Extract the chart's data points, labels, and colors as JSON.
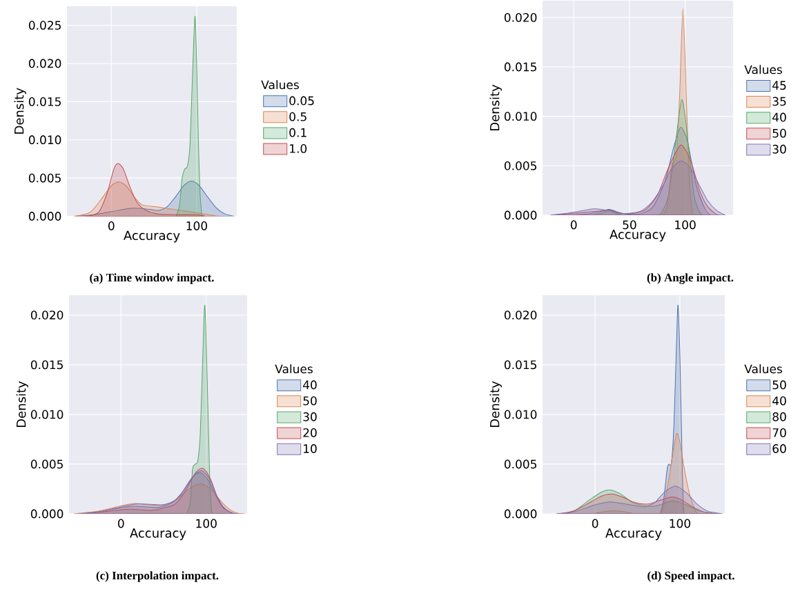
{
  "chart_data": [
    {
      "type": "area",
      "xlabel": "Accuracy",
      "ylabel": "Density",
      "legend_title": "Values",
      "legend": "right",
      "grid": true,
      "annotations": [
        "(a)  Time window impact."
      ],
      "xlim": [
        -52,
        147
      ],
      "ylim": [
        0,
        0.0275
      ],
      "xticks": [
        0,
        100
      ],
      "yticks": [
        {
          "value": 0,
          "label": "0.000"
        },
        {
          "value": 0.005,
          "label": "0.005"
        },
        {
          "value": 0.01,
          "label": "0.010"
        },
        {
          "value": 0.015,
          "label": "0.015"
        },
        {
          "value": 0.02,
          "label": "0.020"
        },
        {
          "value": 0.025,
          "label": "0.025"
        }
      ],
      "series": [
        {
          "name": "0.05",
          "color": "#4c72b0",
          "x": [
            -43,
            -20,
            0,
            25,
            45,
            55,
            65,
            75,
            85,
            94,
            103,
            113,
            123,
            133,
            144
          ],
          "values": [
            0,
            0.0002,
            0.0006,
            0.00105,
            0.0009,
            0.00075,
            0.0012,
            0.0025,
            0.004,
            0.0046,
            0.004,
            0.0025,
            0.0011,
            0.0003,
            0
          ]
        },
        {
          "name": "0.5",
          "color": "#dd8452",
          "x": [
            -43,
            -25,
            -10,
            0,
            9,
            18,
            27,
            36,
            55,
            82,
            100,
            122,
            130
          ],
          "values": [
            0,
            0.0005,
            0.0025,
            0.004,
            0.0045,
            0.0039,
            0.0025,
            0.0015,
            0.0012,
            0.00075,
            0.00045,
            5e-05,
            0
          ]
        },
        {
          "name": "0.1",
          "color": "#55a868",
          "x": [
            76,
            80,
            83,
            86,
            89,
            92,
            95,
            98,
            100,
            102,
            104,
            106,
            107
          ],
          "values": [
            0,
            0.0015,
            0.005,
            0.0062,
            0.0065,
            0.009,
            0.018,
            0.0262,
            0.02,
            0.01,
            0.003,
            0.0003,
            0
          ]
        },
        {
          "name": "1.0",
          "color": "#c44e52",
          "x": [
            -30,
            -15,
            -5,
            3,
            8,
            14,
            22,
            30,
            40,
            55,
            80,
            100,
            110
          ],
          "values": [
            0,
            0.0005,
            0.003,
            0.0062,
            0.0069,
            0.0062,
            0.0038,
            0.0018,
            0.0008,
            0.0003,
            0.0002,
            0.0002,
            0
          ]
        }
      ]
    },
    {
      "type": "area",
      "xlabel": "Accuracy",
      "ylabel": "Density",
      "legend_title": "Values",
      "legend": "right",
      "grid": true,
      "annotations": [
        "(b)  Angle impact."
      ],
      "xlim": [
        -28,
        143
      ],
      "ylim": [
        0,
        0.0217
      ],
      "xticks": [
        0,
        50,
        100
      ],
      "yticks": [
        {
          "value": 0,
          "label": "0.000"
        },
        {
          "value": 0.005,
          "label": "0.005"
        },
        {
          "value": 0.01,
          "label": "0.010"
        },
        {
          "value": 0.015,
          "label": "0.015"
        },
        {
          "value": 0.02,
          "label": "0.020"
        }
      ],
      "series": [
        {
          "name": "45",
          "color": "#4c72b0",
          "x": [
            -10,
            10,
            25,
            32,
            40,
            50,
            62,
            72,
            82,
            90,
            96,
            102,
            110,
            118,
            123
          ],
          "values": [
            0,
            0.0001,
            0.0004,
            0.0006,
            0.0003,
            0.0001,
            0.0002,
            0.001,
            0.0035,
            0.007,
            0.0089,
            0.0075,
            0.003,
            0.0006,
            0
          ]
        },
        {
          "name": "35",
          "color": "#dd8452",
          "x": [
            80,
            84,
            88,
            92,
            95,
            98,
            101,
            104,
            107
          ],
          "values": [
            0,
            0.001,
            0.005,
            0.006,
            0.012,
            0.0209,
            0.012,
            0.003,
            0
          ]
        },
        {
          "name": "40",
          "color": "#55a868",
          "x": [
            15,
            25,
            32,
            40,
            50,
            75,
            80,
            85,
            90,
            97,
            103,
            108,
            113,
            116
          ],
          "values": [
            0,
            0.0002,
            0.0005,
            0.0001,
            0,
            0,
            0.0005,
            0.002,
            0.006,
            0.0117,
            0.007,
            0.002,
            0.0003,
            0
          ]
        },
        {
          "name": "50",
          "color": "#c44e52",
          "x": [
            -20,
            0,
            20,
            32,
            42,
            55,
            65,
            75,
            85,
            96,
            105,
            113,
            120,
            128,
            132
          ],
          "values": [
            0,
            0.0002,
            0.0004,
            0.0005,
            0.0002,
            0.0002,
            0.0006,
            0.002,
            0.0048,
            0.0071,
            0.0055,
            0.0025,
            0.0009,
            0.0001,
            0
          ]
        },
        {
          "name": "30",
          "color": "#8172b3",
          "x": [
            -21,
            0,
            18,
            30,
            40,
            50,
            60,
            70,
            80,
            88,
            96,
            104,
            112,
            120,
            128,
            136
          ],
          "values": [
            0,
            0.0003,
            0.00065,
            0.0005,
            0.0002,
            0.0002,
            0.0004,
            0.0013,
            0.003,
            0.0047,
            0.0055,
            0.0049,
            0.0032,
            0.0015,
            0.0005,
            0
          ]
        }
      ]
    },
    {
      "type": "area",
      "xlabel": "Accuracy",
      "ylabel": "Density",
      "legend_title": "Values",
      "legend": "right",
      "grid": true,
      "annotations": [
        "(c)  Interpolation impact."
      ],
      "xlim": [
        -61,
        148
      ],
      "ylim": [
        0,
        0.022
      ],
      "xticks": [
        0,
        100
      ],
      "yticks": [
        {
          "value": 0,
          "label": "0.000"
        },
        {
          "value": 0.005,
          "label": "0.005"
        },
        {
          "value": 0.01,
          "label": "0.010"
        },
        {
          "value": 0.015,
          "label": "0.015"
        },
        {
          "value": 0.02,
          "label": "0.020"
        }
      ],
      "series": [
        {
          "name": "40",
          "color": "#4c72b0",
          "x": [
            -46,
            -20,
            0,
            16,
            43,
            60,
            70,
            80,
            88,
            94.6,
            103,
            112,
            120,
            130,
            135
          ],
          "values": [
            0,
            0.0003,
            0.0006,
            0.00076,
            0.00065,
            0.0011,
            0.0019,
            0.0032,
            0.004,
            0.0041,
            0.0033,
            0.0017,
            0.0006,
            0.0001,
            0
          ]
        },
        {
          "name": "50",
          "color": "#dd8452",
          "x": [
            -55,
            -25,
            0,
            16,
            35,
            50,
            65,
            78,
            88,
            94.6,
            104,
            115,
            125,
            135,
            145
          ],
          "values": [
            0,
            0.0003,
            0.0008,
            0.00104,
            0.0009,
            0.0009,
            0.0014,
            0.0024,
            0.0029,
            0.003,
            0.0026,
            0.0015,
            0.0006,
            0.0001,
            0
          ]
        },
        {
          "name": "30",
          "color": "#55a868",
          "x": [
            77,
            81,
            84,
            87,
            90,
            93,
            96,
            98.4,
            101,
            104,
            106,
            107.5
          ],
          "values": [
            0,
            0.001,
            0.0045,
            0.005,
            0.0053,
            0.008,
            0.016,
            0.021,
            0.014,
            0.004,
            0.0005,
            0
          ]
        },
        {
          "name": "20",
          "color": "#c44e52",
          "x": [
            -46,
            -20,
            0,
            13,
            35,
            50,
            62,
            70,
            78,
            88,
            96.5,
            105,
            113,
            122,
            133
          ],
          "values": [
            0,
            0.0002,
            0.0004,
            0.00046,
            0.00035,
            0.0006,
            0.0009,
            0.0016,
            0.0027,
            0.0042,
            0.00456,
            0.0035,
            0.0017,
            0.0005,
            0
          ]
        },
        {
          "name": "10",
          "color": "#8172b3",
          "x": [
            -50,
            -25,
            0,
            21,
            48,
            62,
            72,
            82,
            90,
            96,
            104,
            112,
            120,
            130,
            138
          ],
          "values": [
            0,
            0.0002,
            0.0007,
            0.001,
            0.0009,
            0.0013,
            0.0022,
            0.0035,
            0.0042,
            0.0043,
            0.0035,
            0.0019,
            0.0007,
            0.0001,
            0
          ]
        }
      ]
    },
    {
      "type": "area",
      "xlabel": "Accuracy",
      "ylabel": "Density",
      "legend_title": "Values",
      "legend": "right",
      "grid": true,
      "annotations": [
        "(d)  Speed impact."
      ],
      "xlim": [
        -62,
        153
      ],
      "ylim": [
        0,
        0.022
      ],
      "xticks": [
        0,
        100
      ],
      "yticks": [
        {
          "value": 0,
          "label": "0.000"
        },
        {
          "value": 0.005,
          "label": "0.005"
        },
        {
          "value": 0.01,
          "label": "0.010"
        },
        {
          "value": 0.015,
          "label": "0.015"
        },
        {
          "value": 0.02,
          "label": "0.020"
        }
      ],
      "series": [
        {
          "name": "50",
          "color": "#4c72b0",
          "x": [
            77,
            81,
            85,
            87,
            90,
            93,
            96,
            97.8,
            100,
            102.5,
            104,
            105
          ],
          "values": [
            0,
            0.0015,
            0.0045,
            0.005,
            0.0051,
            0.009,
            0.017,
            0.021,
            0.016,
            0.006,
            0.001,
            0
          ]
        },
        {
          "name": "40",
          "color": "#dd8452",
          "x": [
            -2,
            10,
            22,
            35,
            48,
            76,
            82,
            88,
            93,
            96.5,
            100,
            106,
            112,
            118,
            121
          ],
          "values": [
            0,
            0.0002,
            0.0003,
            0.0002,
            0,
            0,
            0.0012,
            0.004,
            0.0068,
            0.0081,
            0.0072,
            0.0042,
            0.0018,
            0.0004,
            0
          ]
        },
        {
          "name": "80",
          "color": "#55a868",
          "x": [
            -45,
            -25,
            -5,
            8,
            18,
            30,
            45,
            60,
            69,
            80,
            91,
            102,
            115,
            128,
            145
          ],
          "values": [
            0,
            0.0003,
            0.0015,
            0.0022,
            0.0024,
            0.002,
            0.0011,
            0.0008,
            0.00076,
            0.001,
            0.0013,
            0.0011,
            0.0006,
            0.0002,
            0
          ]
        },
        {
          "name": "70",
          "color": "#c44e52",
          "x": [
            -45,
            -25,
            -5,
            8,
            20,
            32,
            45,
            55,
            64,
            78,
            91,
            102,
            115,
            128,
            142
          ],
          "values": [
            0,
            0.0003,
            0.0012,
            0.0018,
            0.002,
            0.0017,
            0.0012,
            0.001,
            0.001,
            0.0014,
            0.0017,
            0.0014,
            0.0007,
            0.0002,
            0
          ]
        },
        {
          "name": "60",
          "color": "#8172b3",
          "x": [
            -45,
            -25,
            0,
            17.7,
            35,
            50,
            58,
            70,
            82,
            95,
            108,
            120,
            132,
            150
          ],
          "values": [
            0,
            0.0002,
            0.0009,
            0.0012,
            0.001,
            0.0008,
            0.0007,
            0.0011,
            0.0022,
            0.0028,
            0.0021,
            0.001,
            0.0003,
            0
          ]
        }
      ]
    }
  ]
}
